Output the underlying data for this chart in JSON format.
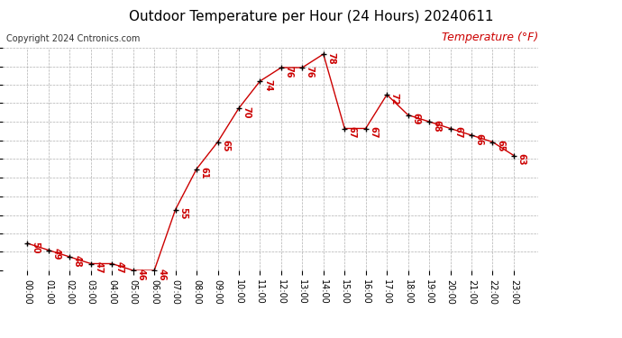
{
  "title": "Outdoor Temperature per Hour (24 Hours) 20240611",
  "copyright": "Copyright 2024 Cntronics.com",
  "ylabel": "Temperature (°F)",
  "hours": [
    "00:00",
    "01:00",
    "02:00",
    "03:00",
    "04:00",
    "05:00",
    "06:00",
    "07:00",
    "08:00",
    "09:00",
    "10:00",
    "11:00",
    "12:00",
    "13:00",
    "14:00",
    "15:00",
    "16:00",
    "17:00",
    "18:00",
    "19:00",
    "20:00",
    "21:00",
    "22:00",
    "23:00"
  ],
  "temps": [
    50,
    49,
    48,
    47,
    47,
    46,
    46,
    55,
    61,
    65,
    70,
    74,
    76,
    76,
    78,
    67,
    67,
    72,
    69,
    68,
    67,
    66,
    65,
    63
  ],
  "line_color": "#cc0000",
  "marker_color": "#000000",
  "label_color": "#cc0000",
  "grid_color": "#b0b0b0",
  "background_color": "#ffffff",
  "ylim_min": 46.0,
  "ylim_max": 79.0,
  "yticks": [
    46.0,
    48.8,
    51.5,
    54.2,
    57.0,
    59.8,
    62.5,
    65.2,
    68.0,
    70.8,
    73.5,
    76.2,
    79.0
  ],
  "title_fontsize": 11,
  "copyright_fontsize": 7,
  "ylabel_fontsize": 9,
  "label_fontsize": 7,
  "tick_fontsize": 7
}
